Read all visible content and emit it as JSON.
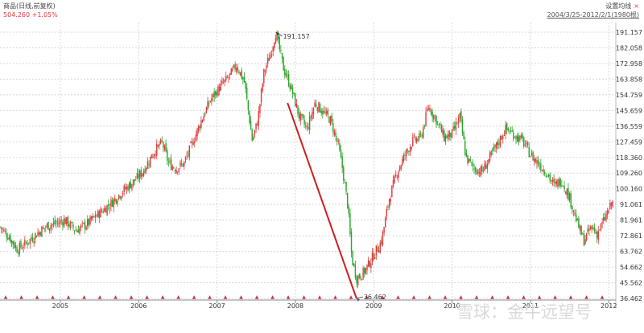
{
  "header": {
    "name": "商品(日线,前复权)",
    "price_line": "504.260 +1.05%",
    "settings": "设置均线",
    "range": "2004/3/25-2012/2/1(1980根)",
    "close": "×"
  },
  "watermark": "雪球：金牛远望号",
  "chart_data": {
    "type": "candlestick",
    "title": "",
    "y_ticks": [
      "191.157",
      "182.058",
      "172.958",
      "163.858",
      "154.759",
      "145.659",
      "136.559",
      "127.459",
      "118.360",
      "109.260",
      "100.160",
      "91.061",
      "81.961",
      "72.861",
      "63.762",
      "54.662",
      "45.562",
      "36.462"
    ],
    "ylim": [
      36.462,
      191.157
    ],
    "x_ticks": [
      "2005",
      "2006",
      "2007",
      "2008",
      "2009",
      "2010",
      "2011",
      "2012"
    ],
    "x_tick_positions": [
      2005.0,
      2006.0,
      2007.0,
      2008.0,
      2009.0,
      2010.0,
      2011.0,
      2012.0
    ],
    "xlim": [
      2004.23,
      2012.09
    ],
    "annotations": [
      {
        "label": "191.157",
        "x": 2007.75,
        "y": 191.157
      },
      {
        "label": "36.462",
        "x": 2008.78,
        "y": 36.462
      }
    ],
    "trend_line": {
      "x1": 2007.9,
      "y1": 150.0,
      "x2": 2008.78,
      "y2": 36.462,
      "color": "#cc1f1f"
    },
    "approx_closes": [
      {
        "x": 2004.23,
        "y": 78
      },
      {
        "x": 2004.35,
        "y": 72
      },
      {
        "x": 2004.45,
        "y": 65
      },
      {
        "x": 2004.55,
        "y": 68
      },
      {
        "x": 2004.65,
        "y": 72
      },
      {
        "x": 2004.75,
        "y": 76
      },
      {
        "x": 2004.85,
        "y": 79
      },
      {
        "x": 2004.95,
        "y": 80
      },
      {
        "x": 2005.05,
        "y": 82
      },
      {
        "x": 2005.2,
        "y": 76
      },
      {
        "x": 2005.35,
        "y": 80
      },
      {
        "x": 2005.5,
        "y": 86
      },
      {
        "x": 2005.65,
        "y": 92
      },
      {
        "x": 2005.8,
        "y": 99
      },
      {
        "x": 2005.95,
        "y": 105
      },
      {
        "x": 2006.05,
        "y": 110
      },
      {
        "x": 2006.2,
        "y": 122
      },
      {
        "x": 2006.3,
        "y": 127
      },
      {
        "x": 2006.38,
        "y": 115
      },
      {
        "x": 2006.48,
        "y": 112
      },
      {
        "x": 2006.58,
        "y": 115
      },
      {
        "x": 2006.68,
        "y": 126
      },
      {
        "x": 2006.8,
        "y": 140
      },
      {
        "x": 2006.92,
        "y": 152
      },
      {
        "x": 2007.05,
        "y": 160
      },
      {
        "x": 2007.15,
        "y": 165
      },
      {
        "x": 2007.25,
        "y": 172
      },
      {
        "x": 2007.35,
        "y": 162
      },
      {
        "x": 2007.45,
        "y": 128
      },
      {
        "x": 2007.52,
        "y": 140
      },
      {
        "x": 2007.6,
        "y": 168
      },
      {
        "x": 2007.68,
        "y": 178
      },
      {
        "x": 2007.75,
        "y": 191
      },
      {
        "x": 2007.85,
        "y": 170
      },
      {
        "x": 2007.95,
        "y": 158
      },
      {
        "x": 2008.05,
        "y": 142
      },
      {
        "x": 2008.15,
        "y": 135
      },
      {
        "x": 2008.25,
        "y": 150
      },
      {
        "x": 2008.35,
        "y": 145
      },
      {
        "x": 2008.45,
        "y": 140
      },
      {
        "x": 2008.55,
        "y": 125
      },
      {
        "x": 2008.6,
        "y": 112
      },
      {
        "x": 2008.67,
        "y": 90
      },
      {
        "x": 2008.72,
        "y": 60
      },
      {
        "x": 2008.78,
        "y": 48
      },
      {
        "x": 2008.88,
        "y": 52
      },
      {
        "x": 2008.98,
        "y": 60
      },
      {
        "x": 2009.1,
        "y": 70
      },
      {
        "x": 2009.2,
        "y": 95
      },
      {
        "x": 2009.3,
        "y": 110
      },
      {
        "x": 2009.4,
        "y": 120
      },
      {
        "x": 2009.5,
        "y": 128
      },
      {
        "x": 2009.6,
        "y": 130
      },
      {
        "x": 2009.7,
        "y": 148
      },
      {
        "x": 2009.8,
        "y": 140
      },
      {
        "x": 2009.9,
        "y": 130
      },
      {
        "x": 2010.0,
        "y": 132
      },
      {
        "x": 2010.1,
        "y": 142
      },
      {
        "x": 2010.18,
        "y": 118
      },
      {
        "x": 2010.28,
        "y": 112
      },
      {
        "x": 2010.38,
        "y": 110
      },
      {
        "x": 2010.48,
        "y": 118
      },
      {
        "x": 2010.58,
        "y": 126
      },
      {
        "x": 2010.68,
        "y": 135
      },
      {
        "x": 2010.78,
        "y": 132
      },
      {
        "x": 2010.9,
        "y": 128
      },
      {
        "x": 2011.0,
        "y": 120
      },
      {
        "x": 2011.1,
        "y": 115
      },
      {
        "x": 2011.2,
        "y": 110
      },
      {
        "x": 2011.3,
        "y": 102
      },
      {
        "x": 2011.4,
        "y": 105
      },
      {
        "x": 2011.5,
        "y": 95
      },
      {
        "x": 2011.6,
        "y": 80
      },
      {
        "x": 2011.68,
        "y": 70
      },
      {
        "x": 2011.78,
        "y": 78
      },
      {
        "x": 2011.85,
        "y": 74
      },
      {
        "x": 2011.92,
        "y": 80
      },
      {
        "x": 2012.0,
        "y": 88
      },
      {
        "x": 2012.05,
        "y": 92
      }
    ],
    "up_color": "#e0393e",
    "down_color": "#29a329",
    "grid": true
  }
}
